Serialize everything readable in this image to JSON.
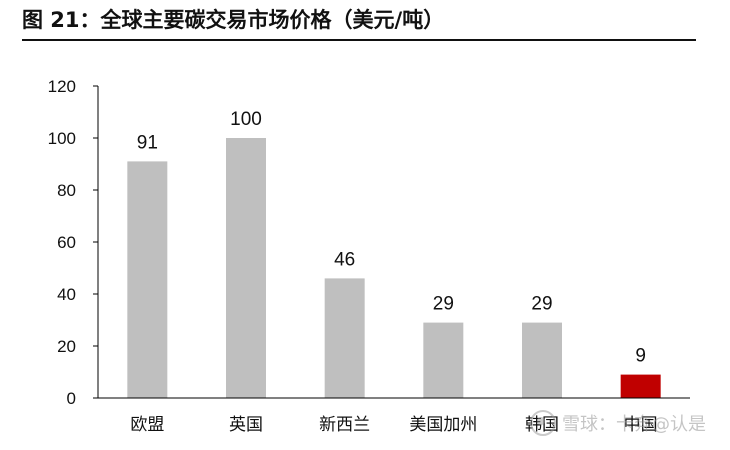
{
  "header": {
    "title": "图 21：全球主要碳交易市场价格（美元/吨）"
  },
  "chart_data": {
    "type": "bar",
    "title": "图 21：全球主要碳交易市场价格（美元/吨）",
    "xlabel": "",
    "ylabel": "",
    "categories": [
      "欧盟",
      "英国",
      "新西兰",
      "美国加州",
      "韩国",
      "中国"
    ],
    "values": [
      91,
      100,
      46,
      29,
      29,
      9
    ],
    "data_labels": [
      "91",
      "100",
      "46",
      "29",
      "29",
      "9"
    ],
    "ylim": [
      0,
      120
    ],
    "yticks": [
      0,
      20,
      40,
      60,
      80,
      100,
      120
    ],
    "grid": false,
    "legend": "none",
    "colors": {
      "default_bar": "#bfbfbf",
      "highlight_bar": "#c00000",
      "axis": "#000000"
    },
    "highlight_category": "中国"
  },
  "watermark": {
    "text": "雪球：卡奔@认是",
    "icon": "snowball-logo-icon"
  }
}
